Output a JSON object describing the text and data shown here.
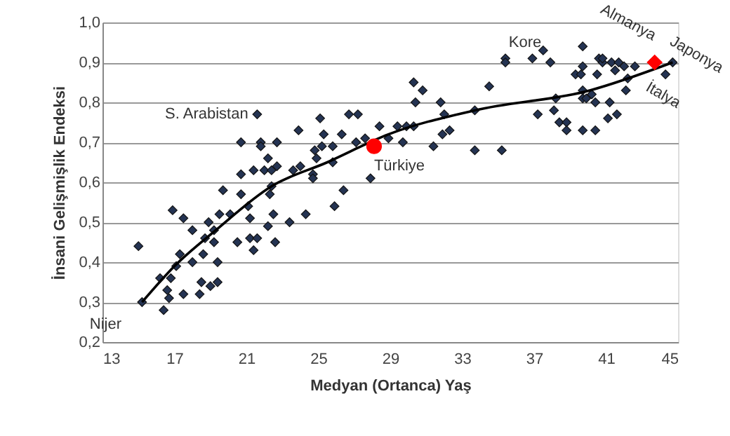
{
  "chart_data": {
    "type": "scatter",
    "xlabel": "Medyan (Ortanca) Yaş",
    "ylabel": "İnsani Gelişmişlik Endeksi",
    "xlim": [
      13,
      45
    ],
    "xticks": [
      13,
      17,
      21,
      25,
      29,
      33,
      37,
      41,
      45
    ],
    "ylim": [
      0.2,
      1.0
    ],
    "yticks": [
      {
        "value": 0.2,
        "label": "0,2"
      },
      {
        "value": 0.3,
        "label": "0,3"
      },
      {
        "value": 0.4,
        "label": "0,4"
      },
      {
        "value": 0.5,
        "label": "0,5"
      },
      {
        "value": 0.6,
        "label": "0,6"
      },
      {
        "value": 0.7,
        "label": "0,7"
      },
      {
        "value": 0.8,
        "label": "0,8"
      },
      {
        "value": 0.9,
        "label": "0,9"
      },
      {
        "value": 1.0,
        "label": "1,0"
      }
    ],
    "grid": "y",
    "series": [
      {
        "marker": "diamond",
        "color": "#243352",
        "x": [
          15.0,
          15.2,
          16.4,
          16.2,
          16.8,
          16.6,
          16.7,
          17.5,
          16.9,
          17.5,
          17.3,
          17.1,
          18.0,
          18.0,
          18.4,
          18.5,
          19.0,
          19.4,
          19.4,
          18.7,
          18.9,
          19.2,
          19.2,
          18.6,
          19.5,
          19.7,
          20.1,
          20.5,
          20.7,
          20.7,
          20.7,
          21.2,
          21.4,
          21.2,
          21.6,
          21.1,
          21.6,
          21.8,
          21.8,
          21.4,
          22.0,
          22.2,
          22.2,
          22.4,
          22.3,
          22.5,
          22.6,
          22.7,
          22.7,
          22.4,
          23.4,
          23.6,
          24.0,
          24.3,
          23.9,
          24.7,
          24.7,
          24.8,
          24.9,
          25.1,
          25.3,
          25.2,
          25.8,
          25.8,
          25.9,
          26.3,
          26.4,
          26.7,
          27.2,
          27.1,
          27.6,
          27.9,
          28.4,
          28.9,
          29.4,
          29.7,
          29.9,
          30.3,
          30.3,
          30.8,
          30.4,
          31.4,
          31.8,
          32.0,
          31.9,
          32.3,
          33.7,
          33.7,
          34.5,
          35.2,
          35.4,
          35.4,
          36.9,
          37.5,
          37.9,
          37.2,
          38.1,
          38.2,
          38.4,
          38.8,
          38.8,
          39.7,
          39.7,
          39.3,
          39.6,
          39.7,
          39.7,
          39.9,
          39.7,
          40.2,
          40.4,
          40.4,
          40.5,
          40.6,
          40.8,
          40.8,
          41.3,
          41.2,
          41.1,
          41.6,
          41.5,
          41.7,
          42.0,
          42.2,
          42.1,
          42.6,
          44.3,
          44.7
        ],
        "values": [
          0.44,
          0.3,
          0.28,
          0.36,
          0.36,
          0.33,
          0.31,
          0.32,
          0.53,
          0.51,
          0.42,
          0.39,
          0.4,
          0.48,
          0.32,
          0.35,
          0.34,
          0.35,
          0.4,
          0.46,
          0.5,
          0.45,
          0.48,
          0.42,
          0.52,
          0.58,
          0.52,
          0.45,
          0.57,
          0.7,
          0.62,
          0.46,
          0.43,
          0.51,
          0.46,
          0.54,
          0.77,
          0.7,
          0.69,
          0.63,
          0.63,
          0.66,
          0.49,
          0.63,
          0.57,
          0.52,
          0.45,
          0.7,
          0.64,
          0.59,
          0.5,
          0.63,
          0.64,
          0.52,
          0.73,
          0.62,
          0.61,
          0.68,
          0.66,
          0.76,
          0.72,
          0.69,
          0.69,
          0.65,
          0.54,
          0.72,
          0.58,
          0.77,
          0.77,
          0.7,
          0.71,
          0.61,
          0.74,
          0.71,
          0.74,
          0.7,
          0.74,
          0.74,
          0.85,
          0.83,
          0.8,
          0.69,
          0.8,
          0.77,
          0.72,
          0.73,
          0.78,
          0.68,
          0.84,
          0.68,
          0.91,
          0.9,
          0.91,
          0.93,
          0.9,
          0.77,
          0.78,
          0.81,
          0.75,
          0.75,
          0.73,
          0.94,
          0.89,
          0.87,
          0.87,
          0.83,
          0.81,
          0.81,
          0.73,
          0.82,
          0.8,
          0.73,
          0.87,
          0.91,
          0.9,
          0.91,
          0.9,
          0.8,
          0.76,
          0.77,
          0.88,
          0.9,
          0.89,
          0.86,
          0.83,
          0.89,
          0.87,
          0.9
        ]
      },
      {
        "type": "line",
        "line_style": "solid",
        "color": "#000000",
        "x": [
          15.2,
          17,
          19.3,
          22.4,
          25.5,
          28.9,
          33.7,
          40.1,
          44.7
        ],
        "values": [
          0.3,
          0.39,
          0.48,
          0.59,
          0.65,
          0.72,
          0.78,
          0.83,
          0.9
        ]
      },
      {
        "type": "scatter",
        "marker": "circle",
        "color": "#ff0000",
        "x": [
          28.1
        ],
        "values": [
          0.69
        ]
      },
      {
        "type": "scatter",
        "marker": "diamond",
        "color": "#ff0000",
        "x": [
          43.7
        ],
        "values": [
          0.9
        ]
      }
    ],
    "annotations": [
      {
        "text": "Nijer",
        "x": 15.2,
        "y": 0.3
      },
      {
        "text": "S. Arabistan",
        "x": 21.6,
        "y": 0.77
      },
      {
        "text": "Türkiye",
        "x": 28.1,
        "y": 0.69
      },
      {
        "text": "Kore",
        "x": 37.9,
        "y": 0.9
      },
      {
        "text": "Almanya",
        "x": 43.7,
        "y": 0.9
      },
      {
        "text": "Japonya",
        "x": 44.7,
        "y": 0.9
      },
      {
        "text": "İtalya",
        "x": 44.3,
        "y": 0.87
      }
    ]
  }
}
